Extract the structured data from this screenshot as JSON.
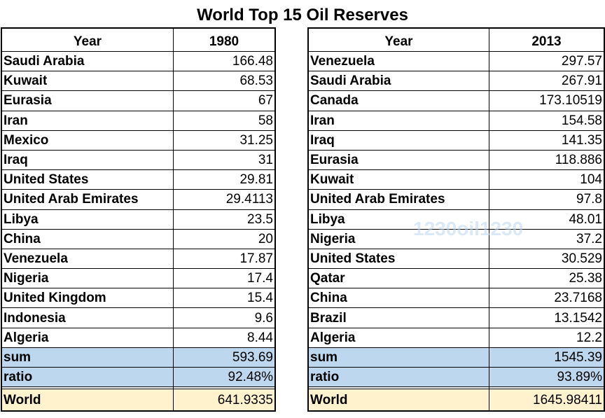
{
  "chart_data": [
    {
      "type": "table",
      "title": "World Top 15 Oil Reserves",
      "header": [
        "Year",
        "1980"
      ],
      "rows": [
        [
          "Saudi Arabia",
          "166.48"
        ],
        [
          "Kuwait",
          "68.53"
        ],
        [
          "Eurasia",
          "67"
        ],
        [
          "Iran",
          "58"
        ],
        [
          "Mexico",
          "31.25"
        ],
        [
          "Iraq",
          "31"
        ],
        [
          "United States",
          "29.81"
        ],
        [
          "United Arab Emirates",
          "29.4113"
        ],
        [
          "Libya",
          "23.5"
        ],
        [
          "China",
          "20"
        ],
        [
          "Venezuela",
          "17.87"
        ],
        [
          "Nigeria",
          "17.4"
        ],
        [
          "United Kingdom",
          "15.4"
        ],
        [
          "Indonesia",
          "9.6"
        ],
        [
          "Algeria",
          "8.44"
        ]
      ],
      "summary": [
        [
          "sum",
          "593.69"
        ],
        [
          "ratio",
          "92.48%"
        ]
      ],
      "world": [
        "World",
        "641.9335"
      ]
    },
    {
      "type": "table",
      "header": [
        "Year",
        "2013"
      ],
      "rows": [
        [
          "Venezuela",
          "297.57"
        ],
        [
          "Saudi Arabia",
          "267.91"
        ],
        [
          "Canada",
          "173.10519"
        ],
        [
          "Iran",
          "154.58"
        ],
        [
          "Iraq",
          "141.35"
        ],
        [
          "Eurasia",
          "118.886"
        ],
        [
          "Kuwait",
          "104"
        ],
        [
          "United Arab Emirates",
          "97.8"
        ],
        [
          "Libya",
          "48.01"
        ],
        [
          "Nigeria",
          "37.2"
        ],
        [
          "United States",
          "30.529"
        ],
        [
          "Qatar",
          "25.38"
        ],
        [
          "China",
          "23.7168"
        ],
        [
          "Brazil",
          "13.1542"
        ],
        [
          "Algeria",
          "12.2"
        ]
      ],
      "summary": [
        [
          "sum",
          "1545.39"
        ],
        [
          "ratio",
          "93.89%"
        ]
      ],
      "world": [
        "World",
        "1645.98411"
      ]
    }
  ],
  "watermark": "1230oil1230",
  "colors": {
    "summary_fill": "#bdd7ee",
    "world_fill": "#fff2cc"
  }
}
